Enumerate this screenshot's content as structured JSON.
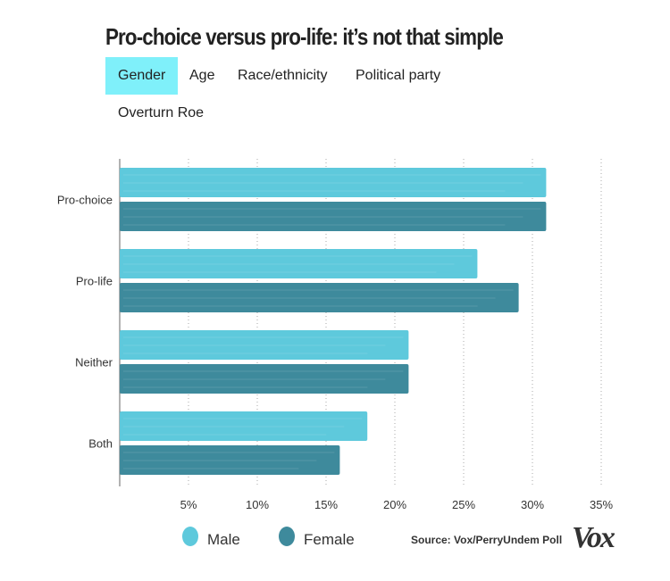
{
  "title": "Pro-choice versus pro-life: it’s not that simple",
  "tabs": [
    {
      "label": "Gender",
      "active": true
    },
    {
      "label": "Age",
      "active": false
    },
    {
      "label": "Race/ethnicity",
      "active": false
    },
    {
      "label": "Political party",
      "active": false
    },
    {
      "label": "Overturn Roe",
      "active": false
    }
  ],
  "colors": {
    "male": "#5ec9dc",
    "female": "#3e8a9c",
    "active_tab": "#7ff0fa",
    "grid": "#aaaaaa"
  },
  "chart_data": {
    "type": "bar",
    "orientation": "horizontal",
    "categories": [
      "Pro-choice",
      "Pro-life",
      "Neither",
      "Both"
    ],
    "series": [
      {
        "name": "Male",
        "values": [
          31,
          26,
          21,
          18
        ]
      },
      {
        "name": "Female",
        "values": [
          31,
          29,
          21,
          16
        ]
      }
    ],
    "x_ticks": [
      5,
      10,
      15,
      20,
      25,
      30,
      35
    ],
    "x_tick_labels": [
      "5%",
      "10%",
      "15%",
      "20%",
      "25%",
      "30%",
      "35%"
    ],
    "xlim": [
      0,
      35
    ],
    "grid": true,
    "legend": "bottom-left"
  },
  "legend": {
    "male": "Male",
    "female": "Female"
  },
  "source": "Source: Vox/PerryUndem Poll",
  "logo": "Vox"
}
